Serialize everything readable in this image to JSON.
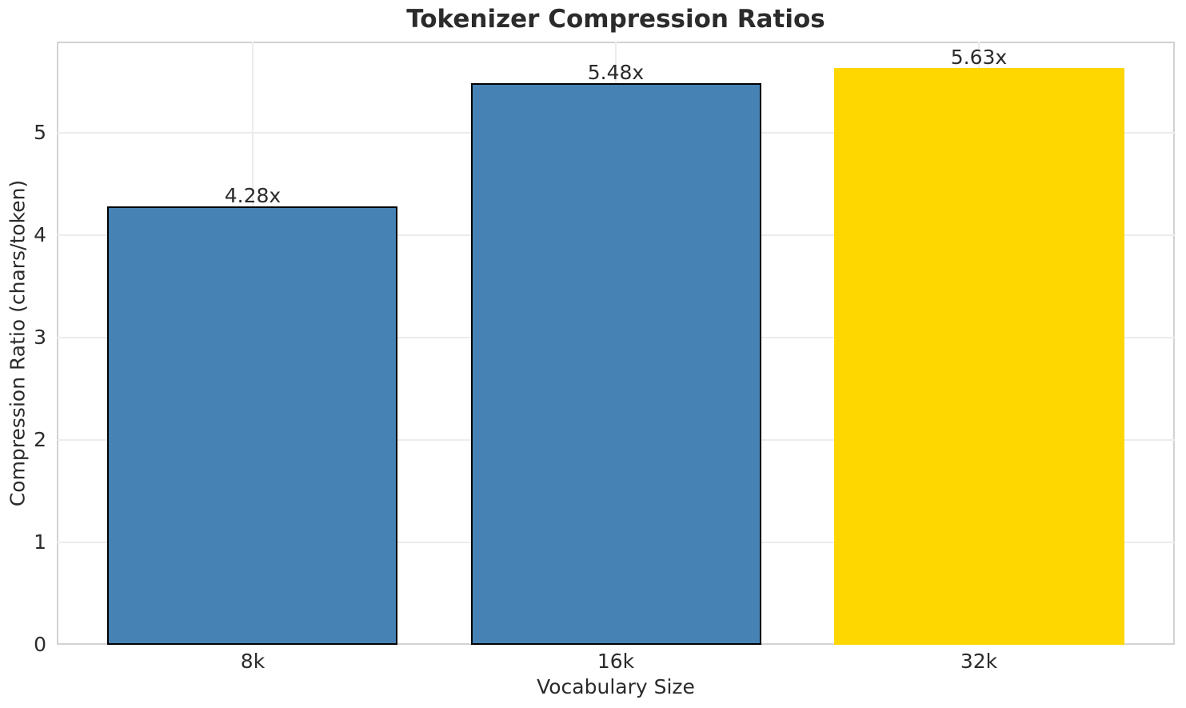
{
  "chart_data": {
    "type": "bar",
    "title": "Tokenizer Compression Ratios",
    "xlabel": "Vocabulary Size",
    "ylabel": "Compression Ratio (chars/token)",
    "categories": [
      "8k",
      "16k",
      "32k"
    ],
    "values": [
      4.28,
      5.48,
      5.63
    ],
    "bar_labels": [
      "4.28x",
      "5.48x",
      "5.63x"
    ],
    "bar_colors": [
      "#4682B4",
      "#4682B4",
      "#FFD700"
    ],
    "bar_edge_colors": [
      "#000000",
      "#000000",
      "none"
    ],
    "yticks": [
      "0",
      "1",
      "2",
      "3",
      "4",
      "5"
    ],
    "ylim": [
      0,
      5.89
    ],
    "grid": "both",
    "legend": "none",
    "colors": {
      "grid": "#ececec",
      "spine": "#d2d2d2",
      "text": "#2b2b2b",
      "background": "#ffffff"
    }
  }
}
